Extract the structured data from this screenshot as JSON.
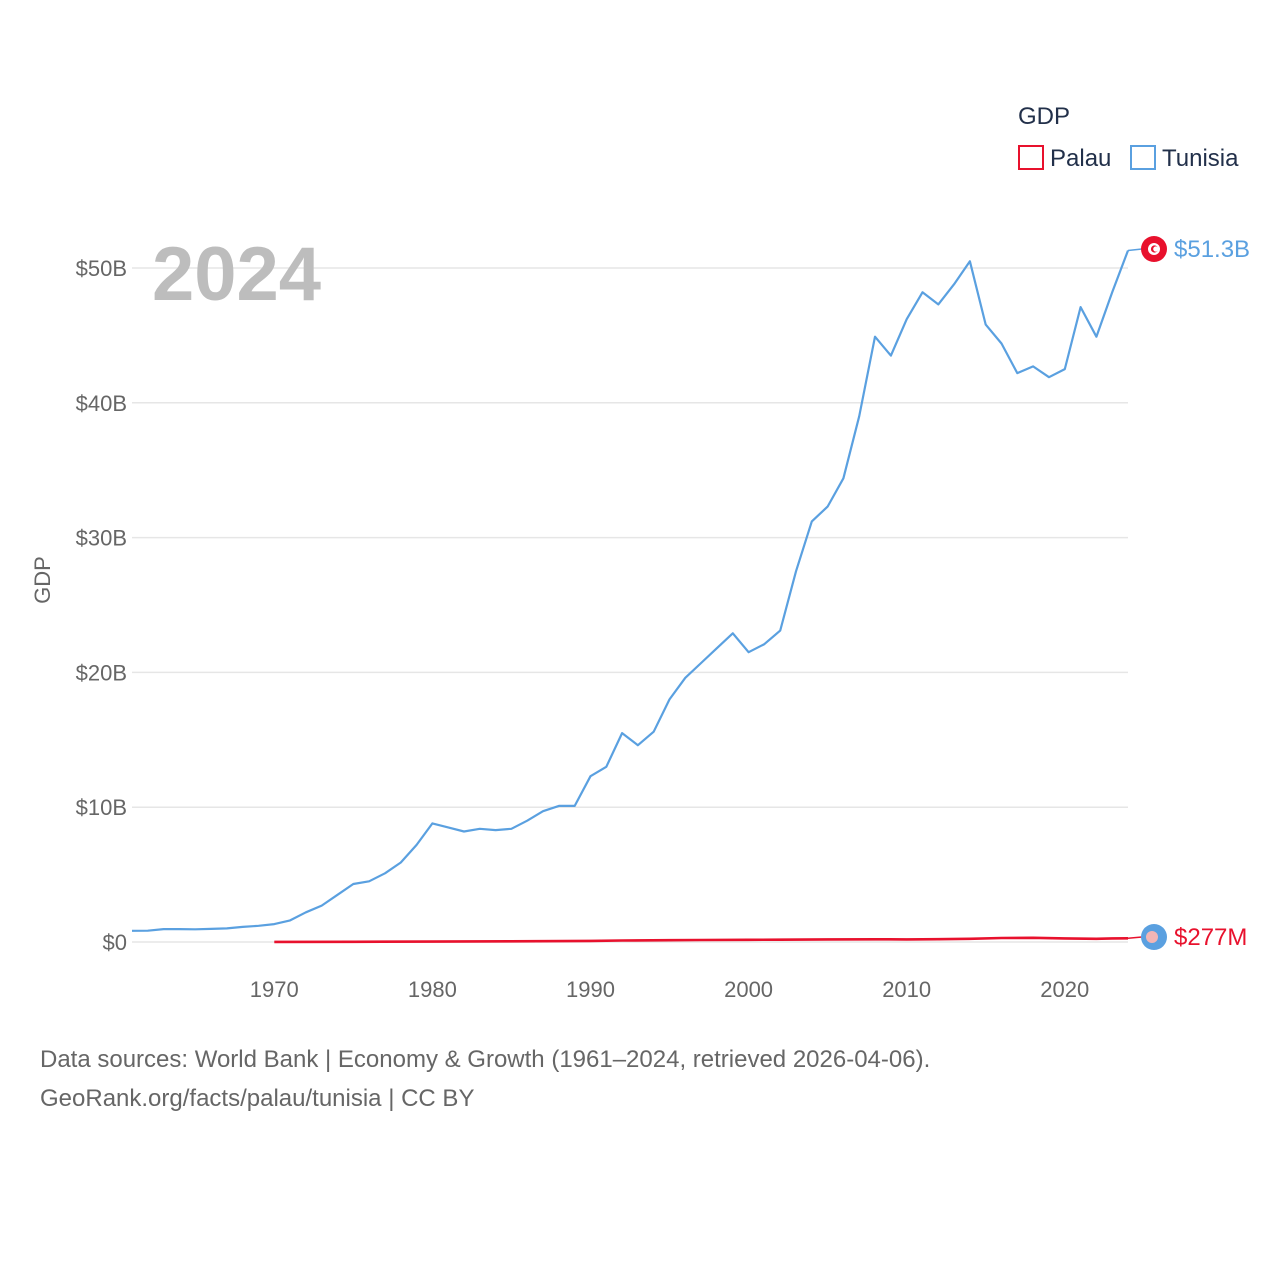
{
  "chart_data": {
    "type": "line",
    "legend_title": "GDP",
    "ylabel": "GDP",
    "current_year": "2024",
    "xlim": [
      1961,
      2024
    ],
    "ylim": [
      0,
      50000000000
    ],
    "x_ticks": [
      1970,
      1980,
      1990,
      2000,
      2010,
      2020
    ],
    "y_ticks": [
      {
        "value": 0,
        "label": "$0"
      },
      {
        "value": 10000000000,
        "label": "$10B"
      },
      {
        "value": 20000000000,
        "label": "$20B"
      },
      {
        "value": 30000000000,
        "label": "$30B"
      },
      {
        "value": 40000000000,
        "label": "$40B"
      },
      {
        "value": 50000000000,
        "label": "$50B"
      }
    ],
    "series": [
      {
        "name": "Palau",
        "color": "#e8112d",
        "end_label": "$277M",
        "marker_fill": "#5aa0e0",
        "marker_inner": "#f2b5b5",
        "points": [
          [
            1970,
            9000000
          ],
          [
            1975,
            15000000
          ],
          [
            1980,
            30000000
          ],
          [
            1985,
            50000000
          ],
          [
            1990,
            80000000
          ],
          [
            1992,
            110000000
          ],
          [
            1995,
            130000000
          ],
          [
            1997,
            150000000
          ],
          [
            2000,
            160000000
          ],
          [
            2002,
            170000000
          ],
          [
            2005,
            190000000
          ],
          [
            2008,
            200000000
          ],
          [
            2010,
            190000000
          ],
          [
            2012,
            210000000
          ],
          [
            2014,
            240000000
          ],
          [
            2016,
            300000000
          ],
          [
            2018,
            310000000
          ],
          [
            2020,
            270000000
          ],
          [
            2022,
            240000000
          ],
          [
            2023,
            265000000
          ],
          [
            2024,
            277000000
          ]
        ]
      },
      {
        "name": "Tunisia",
        "color": "#5aa0e0",
        "end_label": "$51.3B",
        "marker_fill": "#e8112d",
        "marker_inner": "#ffffff",
        "points": [
          [
            1961,
            830000000
          ],
          [
            1962,
            840000000
          ],
          [
            1963,
            960000000
          ],
          [
            1964,
            960000000
          ],
          [
            1965,
            940000000
          ],
          [
            1966,
            970000000
          ],
          [
            1967,
            1010000000
          ],
          [
            1968,
            1120000000
          ],
          [
            1969,
            1200000000
          ],
          [
            1970,
            1330000000
          ],
          [
            1971,
            1600000000
          ],
          [
            1972,
            2200000000
          ],
          [
            1973,
            2700000000
          ],
          [
            1974,
            3500000000
          ],
          [
            1975,
            4300000000
          ],
          [
            1976,
            4500000000
          ],
          [
            1977,
            5100000000
          ],
          [
            1978,
            5900000000
          ],
          [
            1979,
            7200000000
          ],
          [
            1980,
            8800000000
          ],
          [
            1981,
            8500000000
          ],
          [
            1982,
            8200000000
          ],
          [
            1983,
            8400000000
          ],
          [
            1984,
            8300000000
          ],
          [
            1985,
            8400000000
          ],
          [
            1986,
            9000000000
          ],
          [
            1987,
            9700000000
          ],
          [
            1988,
            10100000000
          ],
          [
            1989,
            10100000000
          ],
          [
            1990,
            12300000000
          ],
          [
            1991,
            13000000000
          ],
          [
            1992,
            15500000000
          ],
          [
            1993,
            14600000000
          ],
          [
            1994,
            15600000000
          ],
          [
            1995,
            18000000000
          ],
          [
            1996,
            19600000000
          ],
          [
            1997,
            20700000000
          ],
          [
            1998,
            21800000000
          ],
          [
            1999,
            22900000000
          ],
          [
            2000,
            21500000000
          ],
          [
            2001,
            22100000000
          ],
          [
            2002,
            23100000000
          ],
          [
            2003,
            27500000000
          ],
          [
            2004,
            31200000000
          ],
          [
            2005,
            32300000000
          ],
          [
            2006,
            34400000000
          ],
          [
            2007,
            39000000000
          ],
          [
            2008,
            44900000000
          ],
          [
            2009,
            43500000000
          ],
          [
            2010,
            46200000000
          ],
          [
            2011,
            48200000000
          ],
          [
            2012,
            47300000000
          ],
          [
            2013,
            48800000000
          ],
          [
            2014,
            50500000000
          ],
          [
            2015,
            45800000000
          ],
          [
            2016,
            44400000000
          ],
          [
            2017,
            42200000000
          ],
          [
            2018,
            42700000000
          ],
          [
            2019,
            41900000000
          ],
          [
            2020,
            42500000000
          ],
          [
            2021,
            47100000000
          ],
          [
            2022,
            44900000000
          ],
          [
            2023,
            48200000000
          ],
          [
            2024,
            51300000000
          ]
        ]
      }
    ]
  },
  "footer": {
    "line1": "Data sources: World Bank | Economy & Growth (1961–2024, retrieved 2026-04-06).",
    "line2": "GeoRank.org/facts/palau/tunisia | CC BY"
  }
}
